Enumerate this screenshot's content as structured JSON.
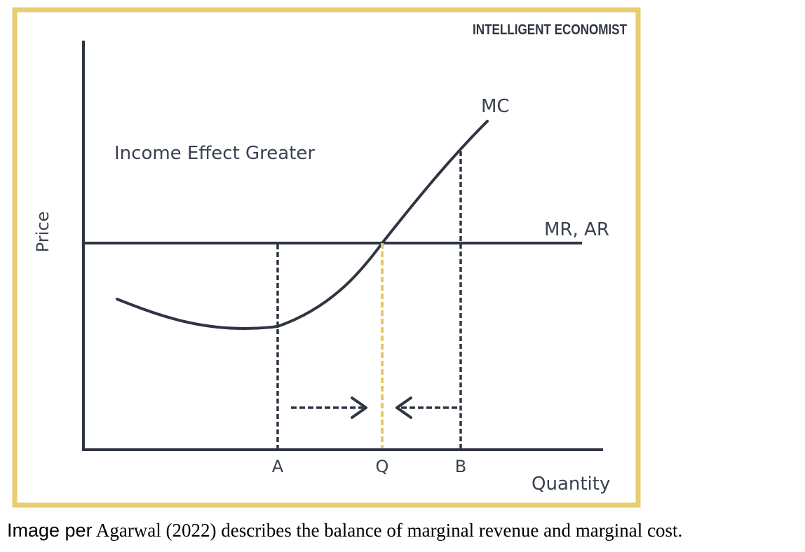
{
  "brand": "INTELLIGENT ECONOMIST",
  "diagram": {
    "title_note": "Income Effect Greater",
    "y_axis_label": "Price",
    "x_axis_label": "Quantity",
    "mc_label": "MC",
    "mr_ar_label": "MR, AR",
    "tick_a": "A",
    "tick_q": "Q",
    "tick_b": "B"
  },
  "caption": {
    "lead": "Image per",
    "rest": " Agarwal (2022) describes the balance of marginal revenue and marginal cost."
  },
  "colors": {
    "frame": "#e8cd72",
    "ink": "#2f3542",
    "highlight": "#edc75b",
    "text": "#3a4150"
  }
}
